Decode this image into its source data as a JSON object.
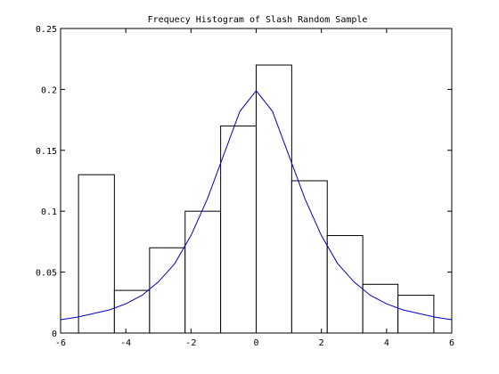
{
  "chart_data": {
    "type": "bar",
    "title": "Frequecy Histogram of Slash Random Sample",
    "xlabel": "",
    "ylabel": "",
    "xlim": [
      -6,
      6
    ],
    "ylim": [
      0,
      0.25
    ],
    "grid": false,
    "xticks": [
      -6,
      -4,
      -2,
      0,
      2,
      4,
      6
    ],
    "yticks": [
      0,
      0.05,
      0.1,
      0.15,
      0.2,
      0.25
    ],
    "xtick_labels": [
      "-6",
      "-4",
      "-2",
      "0",
      "2",
      "4",
      "6"
    ],
    "ytick_labels": [
      "0",
      "0.05",
      "0.1",
      "0.15",
      "0.2",
      "0.25"
    ],
    "bins": [
      {
        "x0": -5.45,
        "x1": -4.35,
        "value": 0.13
      },
      {
        "x0": -4.35,
        "x1": -3.27,
        "value": 0.035
      },
      {
        "x0": -3.27,
        "x1": -2.18,
        "value": 0.07
      },
      {
        "x0": -2.18,
        "x1": -1.09,
        "value": 0.1
      },
      {
        "x0": -1.09,
        "x1": 0.0,
        "value": 0.17
      },
      {
        "x0": 0.0,
        "x1": 1.09,
        "value": 0.22
      },
      {
        "x0": 1.09,
        "x1": 2.18,
        "value": 0.125
      },
      {
        "x0": 2.18,
        "x1": 3.27,
        "value": 0.08
      },
      {
        "x0": 3.27,
        "x1": 4.35,
        "value": 0.04
      },
      {
        "x0": 4.35,
        "x1": 5.45,
        "value": 0.031
      }
    ],
    "curve": {
      "color": "#0000cc",
      "x": [
        -6,
        -5.5,
        -5,
        -4.5,
        -4,
        -3.5,
        -3,
        -2.5,
        -2,
        -1.5,
        -1,
        -0.5,
        0,
        0.5,
        1,
        1.5,
        2,
        2.5,
        3,
        3.5,
        4,
        4.5,
        5,
        5.5,
        6
      ],
      "y": [
        0.011,
        0.013,
        0.016,
        0.019,
        0.024,
        0.031,
        0.042,
        0.057,
        0.08,
        0.11,
        0.146,
        0.182,
        0.199,
        0.182,
        0.146,
        0.11,
        0.08,
        0.057,
        0.042,
        0.031,
        0.024,
        0.019,
        0.016,
        0.013,
        0.011
      ]
    }
  }
}
